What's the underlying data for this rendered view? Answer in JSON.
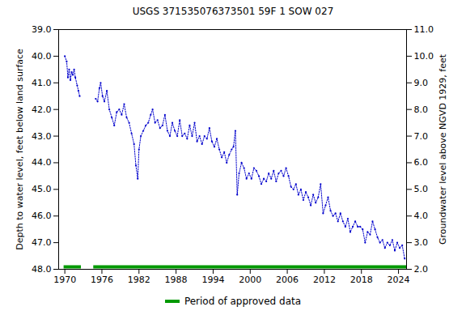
{
  "chart_data": {
    "type": "line",
    "title": "USGS 371535076373501 59F  1 SOW 027",
    "y_label": "Depth to water level, feet below land surface",
    "y2_label": "Groundwater level above NGVD 1929, feet",
    "xlim": [
      1969,
      2025.3
    ],
    "xticks": [
      1970,
      1976,
      1982,
      1988,
      1994,
      2000,
      2006,
      2012,
      2018,
      2024
    ],
    "ylim": [
      39,
      48
    ],
    "yticks": [
      {
        "value": 39,
        "label": "39.0"
      },
      {
        "value": 40,
        "label": "40.0"
      },
      {
        "value": 41,
        "label": "41.0"
      },
      {
        "value": 42,
        "label": "42.0"
      },
      {
        "value": 43,
        "label": "43.0"
      },
      {
        "value": 44,
        "label": "44.0"
      },
      {
        "value": 45,
        "label": "45.0"
      },
      {
        "value": 46,
        "label": "46.0"
      },
      {
        "value": 47,
        "label": "47.0"
      },
      {
        "value": 48,
        "label": "48.0"
      }
    ],
    "y2lim": [
      11,
      2
    ],
    "y2ticks": [
      {
        "value": 11,
        "label": "11.0"
      },
      {
        "value": 10,
        "label": "10.0"
      },
      {
        "value": 9,
        "label": "9.0"
      },
      {
        "value": 8,
        "label": "8.0"
      },
      {
        "value": 7,
        "label": "7.0"
      },
      {
        "value": 6,
        "label": "6.0"
      },
      {
        "value": 5,
        "label": "5.0"
      },
      {
        "value": 4,
        "label": "4.0"
      },
      {
        "value": 3,
        "label": "3.0"
      },
      {
        "value": 2,
        "label": "2.0"
      }
    ],
    "color": "#0000cc",
    "marker": "dot",
    "line_style": "dotted",
    "legend": "bottom",
    "x": [
      1970.0,
      1970.3,
      1970.5,
      1970.7,
      1970.9,
      1971.1,
      1971.3,
      1971.5,
      1971.7,
      1972.0,
      1972.2,
      1972.4,
      1973.5,
      1975.0,
      1975.3,
      1975.6,
      1975.8,
      1976.1,
      1976.4,
      1976.8,
      1977.2,
      1977.6,
      1978.0,
      1978.4,
      1978.8,
      1979.2,
      1979.6,
      1980.0,
      1980.4,
      1980.8,
      1981.2,
      1981.5,
      1981.8,
      1982.0,
      1982.3,
      1982.7,
      1983.1,
      1983.5,
      1983.9,
      1984.2,
      1984.6,
      1985.0,
      1985.4,
      1985.8,
      1986.2,
      1986.6,
      1987.0,
      1987.4,
      1987.8,
      1988.2,
      1988.6,
      1989.0,
      1989.4,
      1989.8,
      1990.2,
      1990.6,
      1991.0,
      1991.4,
      1991.8,
      1992.2,
      1992.6,
      1993.0,
      1993.4,
      1993.8,
      1994.2,
      1994.6,
      1995.0,
      1995.4,
      1995.8,
      1996.2,
      1996.6,
      1997.0,
      1997.3,
      1997.6,
      1997.9,
      1998.2,
      1998.6,
      1999.0,
      1999.4,
      1999.8,
      2000.2,
      2000.6,
      2001.0,
      2001.4,
      2001.8,
      2002.2,
      2002.6,
      2003.0,
      2003.4,
      2003.8,
      2004.2,
      2004.6,
      2005.0,
      2005.4,
      2005.8,
      2006.2,
      2006.6,
      2007.0,
      2007.4,
      2007.8,
      2008.2,
      2008.6,
      2009.0,
      2009.4,
      2009.8,
      2010.2,
      2010.6,
      2011.0,
      2011.4,
      2011.8,
      2012.2,
      2012.6,
      2013.0,
      2013.4,
      2013.8,
      2014.2,
      2014.6,
      2015.0,
      2015.4,
      2015.8,
      2016.2,
      2016.6,
      2017.0,
      2017.4,
      2017.8,
      2018.2,
      2018.6,
      2019.0,
      2019.4,
      2019.8,
      2020.2,
      2020.6,
      2021.0,
      2021.4,
      2021.8,
      2022.2,
      2022.6,
      2023.0,
      2023.4,
      2023.8,
      2024.2,
      2024.6,
      2025.0
    ],
    "values": [
      40.0,
      40.2,
      40.8,
      40.5,
      40.9,
      40.6,
      40.7,
      40.5,
      40.8,
      41.1,
      41.3,
      41.5,
      null,
      41.6,
      41.7,
      41.2,
      41.0,
      41.5,
      41.7,
      41.3,
      42.0,
      42.3,
      42.6,
      42.1,
      42.0,
      42.2,
      41.8,
      42.3,
      42.5,
      42.9,
      43.3,
      44.1,
      44.6,
      43.5,
      43.0,
      42.8,
      42.6,
      42.5,
      42.2,
      42.0,
      42.5,
      42.4,
      42.7,
      42.6,
      42.2,
      42.8,
      43.0,
      42.5,
      42.8,
      43.0,
      42.4,
      43.0,
      42.9,
      43.1,
      42.6,
      43.0,
      42.5,
      43.2,
      43.0,
      43.3,
      43.0,
      43.1,
      42.7,
      43.2,
      43.4,
      43.1,
      43.5,
      43.8,
      43.6,
      44.0,
      43.7,
      43.5,
      43.4,
      42.8,
      45.2,
      44.4,
      44.0,
      44.2,
      44.6,
      44.4,
      44.6,
      44.2,
      44.3,
      44.5,
      44.8,
      44.6,
      44.7,
      44.4,
      44.6,
      44.3,
      44.7,
      44.4,
      44.3,
      44.5,
      44.2,
      44.5,
      44.9,
      45.0,
      44.8,
      45.2,
      45.0,
      45.4,
      45.1,
      45.3,
      45.6,
      45.2,
      45.5,
      45.3,
      44.8,
      45.9,
      45.6,
      45.3,
      45.8,
      46.0,
      45.9,
      46.2,
      45.9,
      46.2,
      46.4,
      46.1,
      46.6,
      46.4,
      46.2,
      46.4,
      46.4,
      46.5,
      47.0,
      46.6,
      46.7,
      46.2,
      46.5,
      46.8,
      47.0,
      46.9,
      47.2,
      47.0,
      47.1,
      46.9,
      47.3,
      47.0,
      47.2,
      47.1,
      47.6
    ],
    "approved_data": {
      "name": "Period of approved data",
      "color": "#009900",
      "periods": [
        [
          1969.8,
          1972.6
        ],
        [
          1974.6,
          2025.3
        ]
      ]
    }
  }
}
